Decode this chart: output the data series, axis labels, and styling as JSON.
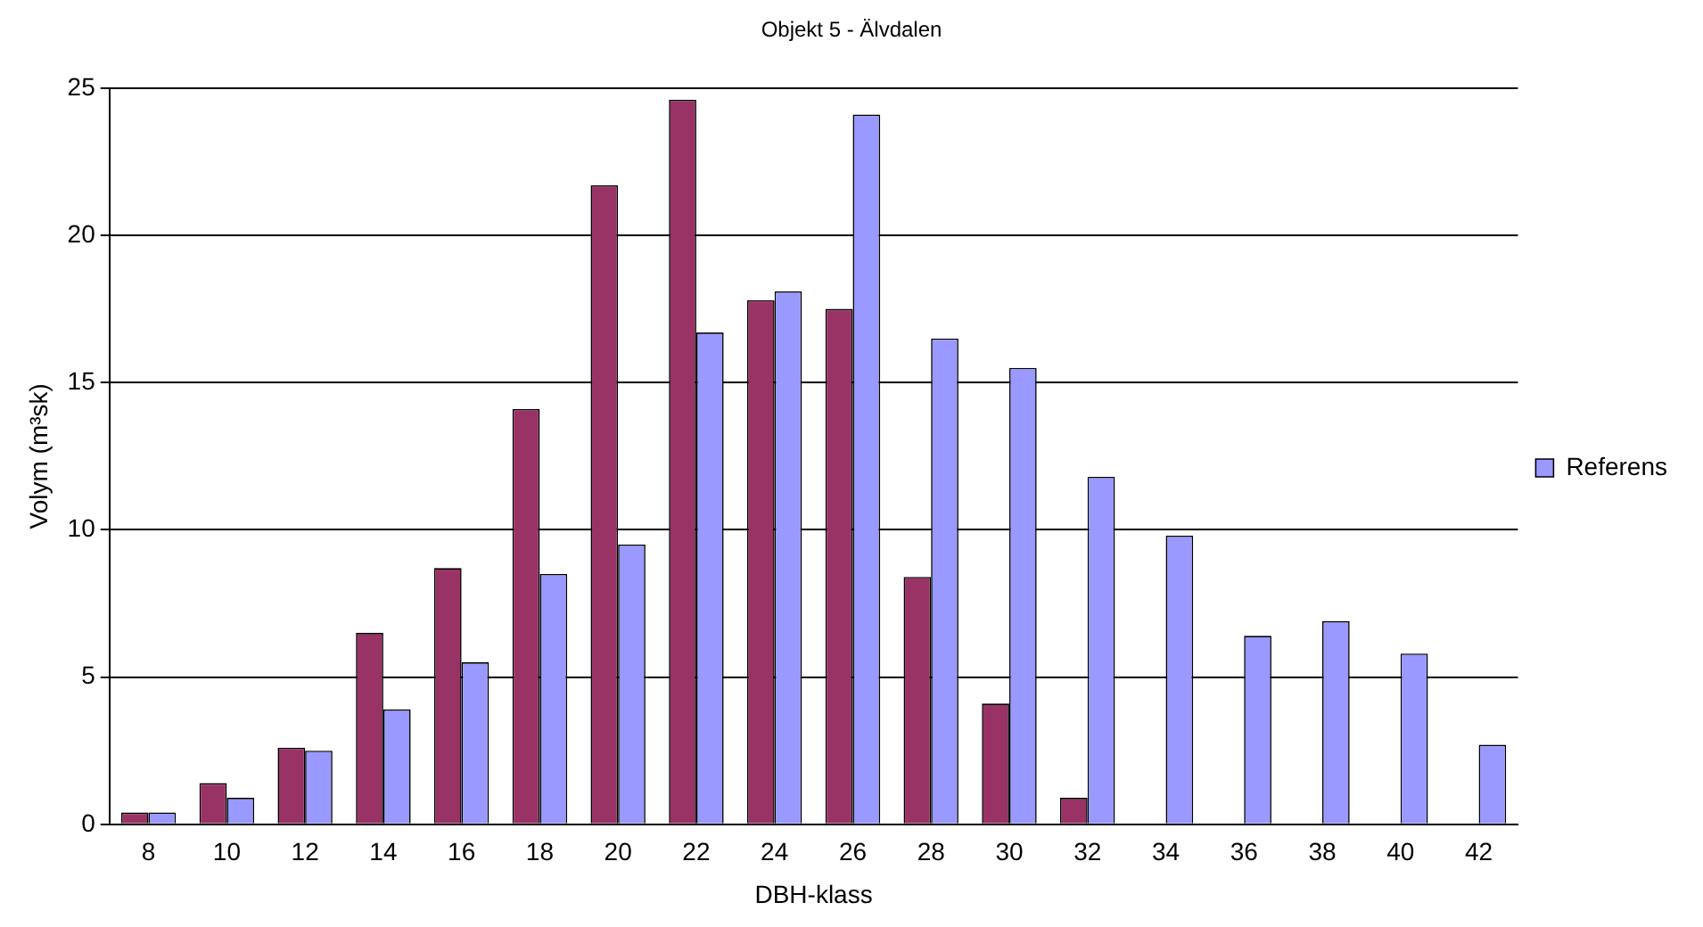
{
  "chart_data": {
    "type": "bar",
    "title": "Objekt 5 - Älvdalen",
    "xlabel": "DBH-klass",
    "ylabel": "Volym (m³sk)",
    "categories": [
      "8",
      "10",
      "12",
      "14",
      "16",
      "18",
      "20",
      "22",
      "24",
      "26",
      "28",
      "30",
      "32",
      "34",
      "36",
      "38",
      "40",
      "42"
    ],
    "series": [
      {
        "color": "#993366",
        "values": [
          0.4,
          1.4,
          2.6,
          6.5,
          8.7,
          14.1,
          21.7,
          24.6,
          17.8,
          17.5,
          8.4,
          4.1,
          0.9,
          0,
          0,
          0,
          0,
          0
        ]
      },
      {
        "name": "Referens",
        "color": "#9999ff",
        "values": [
          0.4,
          0.9,
          2.5,
          3.9,
          5.5,
          8.5,
          9.5,
          16.7,
          18.1,
          24.1,
          16.5,
          15.5,
          11.8,
          9.8,
          6.4,
          6.9,
          5.8,
          2.7
        ]
      }
    ],
    "ylim": [
      0,
      25
    ],
    "yticks": [
      0,
      5,
      10,
      15,
      20,
      25
    ],
    "grid": "y",
    "legend": "right"
  }
}
